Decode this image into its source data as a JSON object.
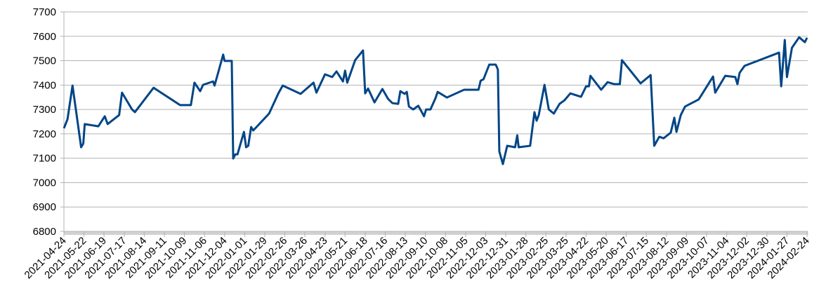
{
  "chart_data": {
    "type": "line",
    "x": [
      "2021-04-24",
      "2021-04-29",
      "2021-05-06",
      "2021-05-18",
      "2021-05-21",
      "2021-05-23",
      "2021-06-11",
      "2021-06-20",
      "2021-06-24",
      "2021-07-10",
      "2021-07-14",
      "2021-07-28",
      "2021-08-01",
      "2021-08-27",
      "2021-10-03",
      "2021-10-18",
      "2021-10-23",
      "2021-10-31",
      "2021-11-04",
      "2021-11-18",
      "2021-11-20",
      "2021-11-26",
      "2021-12-02",
      "2021-12-04",
      "2021-12-14",
      "2021-12-16",
      "2021-12-19",
      "2021-12-22",
      "2021-12-31",
      "2022-01-03",
      "2022-01-06",
      "2022-01-10",
      "2022-01-13",
      "2022-02-04",
      "2022-02-17",
      "2022-02-23",
      "2022-03-20",
      "2022-04-07",
      "2022-04-11",
      "2022-04-23",
      "2022-05-03",
      "2022-05-09",
      "2022-05-18",
      "2022-05-21",
      "2022-05-24",
      "2022-06-04",
      "2022-06-15",
      "2022-06-18",
      "2022-06-22",
      "2022-07-01",
      "2022-07-12",
      "2022-07-20",
      "2022-07-26",
      "2022-08-03",
      "2022-08-06",
      "2022-08-12",
      "2022-08-15",
      "2022-08-18",
      "2022-08-24",
      "2022-08-31",
      "2022-09-05",
      "2022-09-08",
      "2022-09-11",
      "2022-09-17",
      "2022-09-24",
      "2022-09-27",
      "2022-10-10",
      "2022-11-03",
      "2022-11-10",
      "2022-11-23",
      "2022-11-26",
      "2022-11-30",
      "2022-12-08",
      "2022-12-17",
      "2022-12-20",
      "2022-12-22",
      "2022-12-27",
      "2023-01-02",
      "2023-01-13",
      "2023-01-16",
      "2023-01-18",
      "2023-02-03",
      "2023-02-09",
      "2023-02-12",
      "2023-02-15",
      "2023-02-23",
      "2023-03-01",
      "2023-03-08",
      "2023-03-16",
      "2023-03-23",
      "2023-03-31",
      "2023-04-15",
      "2023-04-22",
      "2023-04-26",
      "2023-04-28",
      "2023-05-13",
      "2023-05-22",
      "2023-05-31",
      "2023-06-08",
      "2023-06-11",
      "2023-07-07",
      "2023-07-21",
      "2023-07-26",
      "2023-08-02",
      "2023-08-08",
      "2023-08-18",
      "2023-08-23",
      "2023-08-26",
      "2023-09-01",
      "2023-09-07",
      "2023-09-26",
      "2023-10-16",
      "2023-10-19",
      "2023-11-02",
      "2023-11-16",
      "2023-11-19",
      "2023-11-22",
      "2023-11-29",
      "2024-01-16",
      "2024-01-19",
      "2024-01-24",
      "2024-01-27",
      "2024-02-03",
      "2024-02-13",
      "2024-02-21",
      "2024-02-24"
    ],
    "values": [
      7223,
      7260,
      7398,
      7145,
      7160,
      7240,
      7231,
      7272,
      7240,
      7277,
      7369,
      7300,
      7289,
      7389,
      7318,
      7318,
      7410,
      7375,
      7401,
      7415,
      7398,
      7461,
      7525,
      7499,
      7499,
      7099,
      7116,
      7116,
      7208,
      7145,
      7151,
      7228,
      7214,
      7283,
      7366,
      7398,
      7364,
      7410,
      7369,
      7444,
      7433,
      7456,
      7415,
      7459,
      7410,
      7502,
      7542,
      7366,
      7386,
      7329,
      7384,
      7343,
      7326,
      7323,
      7375,
      7364,
      7372,
      7312,
      7300,
      7315,
      7289,
      7272,
      7300,
      7300,
      7346,
      7372,
      7349,
      7381,
      7381,
      7381,
      7418,
      7424,
      7484,
      7484,
      7464,
      7128,
      7076,
      7151,
      7145,
      7194,
      7145,
      7151,
      7289,
      7254,
      7277,
      7401,
      7300,
      7283,
      7323,
      7338,
      7366,
      7352,
      7395,
      7395,
      7438,
      7381,
      7412,
      7404,
      7404,
      7502,
      7407,
      7441,
      7151,
      7188,
      7182,
      7205,
      7266,
      7208,
      7277,
      7312,
      7341,
      7435,
      7369,
      7438,
      7433,
      7404,
      7450,
      7479,
      7533,
      7395,
      7585,
      7433,
      7553,
      7596,
      7576,
      7594
    ],
    "color": "#004586",
    "xlim": [
      "2021-04-24",
      "2024-02-25"
    ],
    "xticks": [
      "2021-04-24",
      "2021-05-22",
      "2021-06-19",
      "2021-07-17",
      "2021-08-14",
      "2021-09-11",
      "2021-10-09",
      "2021-11-06",
      "2021-12-04",
      "2022-01-01",
      "2022-01-29",
      "2022-02-26",
      "2022-03-26",
      "2022-04-23",
      "2022-05-21",
      "2022-06-18",
      "2022-07-16",
      "2022-08-13",
      "2022-09-10",
      "2022-10-08",
      "2022-11-05",
      "2022-12-03",
      "2022-12-31",
      "2023-01-28",
      "2023-02-25",
      "2023-03-25",
      "2023-04-22",
      "2023-05-20",
      "2023-06-17",
      "2023-07-15",
      "2023-08-12",
      "2023-09-09",
      "2023-10-07",
      "2023-11-04",
      "2023-12-02",
      "2023-12-30",
      "2024-01-27",
      "2024-02-24"
    ],
    "ylim": [
      6800,
      7700
    ],
    "yticks": [
      6800,
      6900,
      7000,
      7100,
      7200,
      7300,
      7400,
      7500,
      7600,
      7700
    ],
    "grid": true
  }
}
